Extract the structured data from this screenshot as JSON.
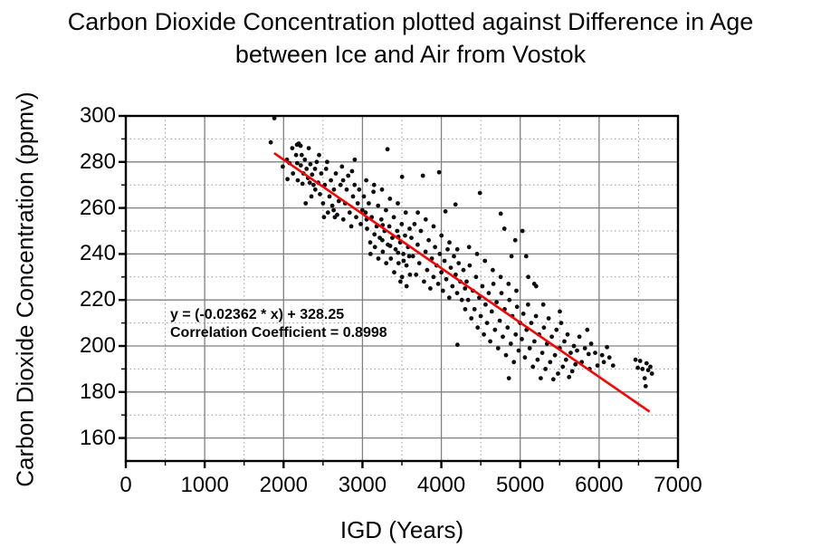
{
  "title": {
    "line1": "Carbon Dioxide Concentration plotted against Difference in Age",
    "line2": "between Ice and Air from Vostok"
  },
  "axes": {
    "x": {
      "label": "IGD (Years)",
      "tick_labels": [
        "0",
        "1000",
        "2000",
        "3000",
        "4000",
        "5000",
        "6000",
        "7000"
      ],
      "tick_values": [
        0,
        1000,
        2000,
        3000,
        4000,
        5000,
        6000,
        7000
      ]
    },
    "y": {
      "label": "Carbon Dioxide Concentration (ppmv)",
      "tick_labels": [
        "160",
        "180",
        "200",
        "220",
        "240",
        "260",
        "280",
        "300"
      ],
      "tick_values": [
        160,
        180,
        200,
        220,
        240,
        260,
        280,
        300
      ]
    }
  },
  "annotation": {
    "line1": "y = (-0.02362 * x) + 328.25",
    "line2": "Correlation Coefficient = 0.8998"
  },
  "colors": {
    "regression_line": "#ff0000",
    "point": "#0d0d0d",
    "grid_major": "#808080",
    "grid_minor": "#9a9a9a",
    "axis_box": "#000000",
    "text": "#070707"
  },
  "chart_data": {
    "type": "scatter",
    "title": "Carbon Dioxide Concentration plotted against Difference in Age between Ice and Air from Vostok",
    "xlabel": "IGD (Years)",
    "ylabel": "Carbon Dioxide Concentration (ppmv)",
    "xlim": [
      0,
      7000
    ],
    "ylim": [
      150,
      300
    ],
    "x_major_step": 1000,
    "x_minor_step": 500,
    "y_major_step": 20,
    "y_minor_step": 10,
    "grid": "major solid, minor dotted",
    "legend": "none",
    "regression": {
      "slope": -0.02362,
      "intercept": 328.25,
      "x_start": 1880,
      "x_end": 6640,
      "equation": "y = (-0.02362 * x) + 328.25",
      "correlation_coefficient": 0.8998
    },
    "points": [
      [
        1837,
        288.5
      ],
      [
        1883,
        299
      ],
      [
        1990,
        278
      ],
      [
        2043,
        281
      ],
      [
        2050,
        272.5
      ],
      [
        2075,
        279.5
      ],
      [
        2110,
        286
      ],
      [
        2120,
        275
      ],
      [
        2158,
        283
      ],
      [
        2170,
        287.5
      ],
      [
        2172,
        279.5
      ],
      [
        2180,
        272
      ],
      [
        2193,
        288
      ],
      [
        2216,
        287
      ],
      [
        2218,
        278.5
      ],
      [
        2230,
        283
      ],
      [
        2240,
        270.5
      ],
      [
        2252,
        275
      ],
      [
        2270,
        281
      ],
      [
        2280,
        262
      ],
      [
        2292,
        277
      ],
      [
        2310,
        273
      ],
      [
        2319,
        286
      ],
      [
        2332,
        271
      ],
      [
        2340,
        279
      ],
      [
        2352,
        265
      ],
      [
        2362,
        274.5
      ],
      [
        2380,
        270
      ],
      [
        2398,
        277
      ],
      [
        2402,
        268
      ],
      [
        2420,
        280
      ],
      [
        2438,
        271
      ],
      [
        2450,
        283
      ],
      [
        2462,
        266
      ],
      [
        2478,
        275
      ],
      [
        2500,
        262
      ],
      [
        2512,
        256
      ],
      [
        2522,
        270
      ],
      [
        2540,
        277
      ],
      [
        2552,
        280
      ],
      [
        2562,
        258
      ],
      [
        2582,
        265
      ],
      [
        2600,
        272
      ],
      [
        2618,
        261
      ],
      [
        2635,
        259
      ],
      [
        2638,
        268
      ],
      [
        2650,
        256
      ],
      [
        2662,
        275
      ],
      [
        2680,
        257
      ],
      [
        2700,
        263
      ],
      [
        2722,
        270
      ],
      [
        2740,
        278
      ],
      [
        2755,
        272
      ],
      [
        2758,
        255
      ],
      [
        2780,
        262
      ],
      [
        2800,
        268
      ],
      [
        2820,
        274
      ],
      [
        2838,
        258
      ],
      [
        2858,
        252
      ],
      [
        2868,
        276
      ],
      [
        2880,
        265
      ],
      [
        2900,
        270
      ],
      [
        2902,
        281
      ],
      [
        2920,
        256
      ],
      [
        2940,
        262
      ],
      [
        2958,
        268
      ],
      [
        2978,
        253
      ],
      [
        2998,
        259
      ],
      [
        3018,
        265
      ],
      [
        3040,
        258
      ],
      [
        3048,
        272
      ],
      [
        3052,
        255
      ],
      [
        3058,
        251
      ],
      [
        3080,
        262
      ],
      [
        3098,
        245
      ],
      [
        3102,
        240
      ],
      [
        3118,
        256
      ],
      [
        3140,
        267
      ],
      [
        3148,
        270
      ],
      [
        3152,
        248.5
      ],
      [
        3158,
        243
      ],
      [
        3180,
        252
      ],
      [
        3198,
        261
      ],
      [
        3202,
        238
      ],
      [
        3220,
        247
      ],
      [
        3240,
        255
      ],
      [
        3248,
        268
      ],
      [
        3252,
        246
      ],
      [
        3255,
        252.5
      ],
      [
        3258,
        241
      ],
      [
        3280,
        250
      ],
      [
        3298,
        259
      ],
      [
        3302,
        236
      ],
      [
        3318,
        285.5
      ],
      [
        3322,
        244
      ],
      [
        3340,
        252
      ],
      [
        3348,
        264
      ],
      [
        3352,
        243.5
      ],
      [
        3360,
        238
      ],
      [
        3378,
        247
      ],
      [
        3398,
        256
      ],
      [
        3402,
        232
      ],
      [
        3420,
        242
      ],
      [
        3440,
        250
      ],
      [
        3448,
        262
      ],
      [
        3452,
        240.5
      ],
      [
        3455,
        247.5
      ],
      [
        3458,
        236
      ],
      [
        3478,
        245
      ],
      [
        3482,
        228
      ],
      [
        3498,
        253
      ],
      [
        3502,
        273.5
      ],
      [
        3502,
        230
      ],
      [
        3518,
        240
      ],
      [
        3522,
        237
      ],
      [
        3540,
        248
      ],
      [
        3548,
        258
      ],
      [
        3558,
        235
      ],
      [
        3560,
        226
      ],
      [
        3578,
        243
      ],
      [
        3592,
        239
      ],
      [
        3598,
        251
      ],
      [
        3602,
        231
      ],
      [
        3620,
        247
      ],
      [
        3640,
        239
      ],
      [
        3660,
        253
      ],
      [
        3680,
        231
      ],
      [
        3700,
        244
      ],
      [
        3702,
        258
      ],
      [
        3720,
        236
      ],
      [
        3740,
        250
      ],
      [
        3766,
        274
      ],
      [
        3780,
        228
      ],
      [
        3800,
        241
      ],
      [
        3802,
        255
      ],
      [
        3820,
        233
      ],
      [
        3840,
        246
      ],
      [
        3860,
        225
      ],
      [
        3880,
        238
      ],
      [
        3900,
        230
      ],
      [
        3902,
        252
      ],
      [
        3920,
        243
      ],
      [
        3940,
        235
      ],
      [
        3960,
        227
      ],
      [
        3972,
        275.5
      ],
      [
        3980,
        240
      ],
      [
        4000,
        232
      ],
      [
        4002,
        248
      ],
      [
        4020,
        224
      ],
      [
        4040,
        237
      ],
      [
        4052,
        258.5
      ],
      [
        4062,
        229
      ],
      [
        4080,
        242
      ],
      [
        4100,
        221
      ],
      [
        4102,
        245
      ],
      [
        4120,
        234
      ],
      [
        4140,
        226
      ],
      [
        4160,
        239
      ],
      [
        4179,
        261.5
      ],
      [
        4182,
        231
      ],
      [
        4200,
        223
      ],
      [
        4202,
        242
      ],
      [
        4205,
        200.5
      ],
      [
        4220,
        236
      ],
      [
        4240,
        228
      ],
      [
        4260,
        220
      ],
      [
        4280,
        233
      ],
      [
        4300,
        225
      ],
      [
        4302,
        216
      ],
      [
        4320,
        228
      ],
      [
        4340,
        220
      ],
      [
        4352,
        243
      ],
      [
        4360,
        235
      ],
      [
        4380,
        212
      ],
      [
        4400,
        224
      ],
      [
        4420,
        216
      ],
      [
        4440,
        230
      ],
      [
        4452,
        240
      ],
      [
        4460,
        208
      ],
      [
        4480,
        221
      ],
      [
        4489,
        266.5
      ],
      [
        4500,
        213
      ],
      [
        4520,
        226
      ],
      [
        4540,
        205
      ],
      [
        4552,
        237
      ],
      [
        4560,
        218
      ],
      [
        4580,
        210
      ],
      [
        4600,
        223
      ],
      [
        4620,
        202
      ],
      [
        4640,
        215
      ],
      [
        4652,
        233
      ],
      [
        4660,
        227
      ],
      [
        4680,
        207
      ],
      [
        4700,
        219
      ],
      [
        4720,
        199
      ],
      [
        4740,
        211
      ],
      [
        4752,
        230
      ],
      [
        4753,
        257.5
      ],
      [
        4762,
        223
      ],
      [
        4780,
        204
      ],
      [
        4799,
        251
      ],
      [
        4802,
        216
      ],
      [
        4820,
        196
      ],
      [
        4840,
        208
      ],
      [
        4852,
        227
      ],
      [
        4856,
        186
      ],
      [
        4862,
        220
      ],
      [
        4880,
        201
      ],
      [
        4890,
        239
      ],
      [
        4900,
        213
      ],
      [
        4920,
        193
      ],
      [
        4937,
        246
      ],
      [
        4942,
        205
      ],
      [
        4952,
        224
      ],
      [
        4960,
        217
      ],
      [
        4980,
        198
      ],
      [
        5000,
        210
      ],
      [
        5029,
        250
      ],
      [
        5020,
        203
      ],
      [
        5040,
        214
      ],
      [
        5060,
        195
      ],
      [
        5075,
        239
      ],
      [
        5080,
        207
      ],
      [
        5100,
        218
      ],
      [
        5102,
        230
      ],
      [
        5120,
        199
      ],
      [
        5140,
        210
      ],
      [
        5160,
        191
      ],
      [
        5178,
        227
      ],
      [
        5180,
        202
      ],
      [
        5200,
        213
      ],
      [
        5202,
        226
      ],
      [
        5220,
        194
      ],
      [
        5240,
        205
      ],
      [
        5260,
        186
      ],
      [
        5280,
        197
      ],
      [
        5292,
        218
      ],
      [
        5300,
        208
      ],
      [
        5320,
        190
      ],
      [
        5340,
        201
      ],
      [
        5360,
        212
      ],
      [
        5380,
        193
      ],
      [
        5400,
        204
      ],
      [
        5420,
        185.5
      ],
      [
        5440,
        196
      ],
      [
        5460,
        207
      ],
      [
        5480,
        188
      ],
      [
        5500,
        199
      ],
      [
        5502,
        215
      ],
      [
        5520,
        210
      ],
      [
        5540,
        191
      ],
      [
        5560,
        202
      ],
      [
        5580,
        194
      ],
      [
        5600,
        205
      ],
      [
        5620,
        186.5
      ],
      [
        5640,
        197
      ],
      [
        5660,
        189
      ],
      [
        5680,
        200
      ],
      [
        5700,
        192
      ],
      [
        5720,
        198
      ],
      [
        5750,
        204
      ],
      [
        5780,
        193
      ],
      [
        5820,
        199
      ],
      [
        5850,
        207
      ],
      [
        5867,
        196.5
      ],
      [
        5880,
        190
      ],
      [
        5900,
        201
      ],
      [
        5950,
        197
      ],
      [
        5980,
        191.5
      ],
      [
        6038,
        196
      ],
      [
        6060,
        193
      ],
      [
        6100,
        199.5
      ],
      [
        6130,
        195
      ],
      [
        6177,
        191.5
      ],
      [
        6462,
        194
      ],
      [
        6490,
        190.5
      ],
      [
        6520,
        193.5
      ],
      [
        6550,
        190
      ],
      [
        6578,
        186
      ],
      [
        6590,
        182.5
      ],
      [
        6602,
        192.5
      ],
      [
        6622,
        189.5
      ],
      [
        6650,
        191
      ],
      [
        6670,
        188
      ]
    ]
  }
}
